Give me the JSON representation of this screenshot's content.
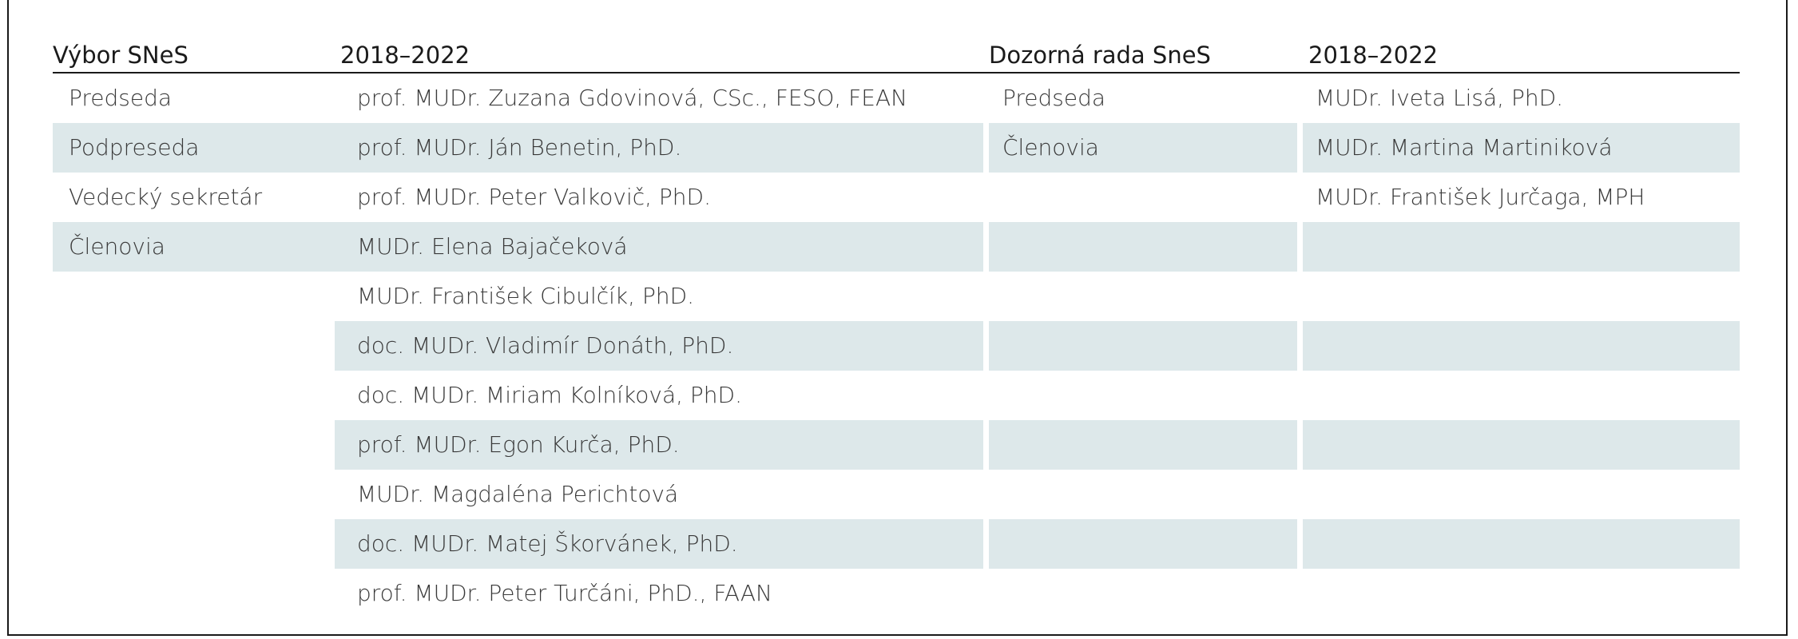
{
  "table": {
    "headers": {
      "committee": "Výbor SNeS",
      "committee_term": "2018–2022",
      "supervisory": "Dozorná rada SneS",
      "supervisory_term": "2018–2022"
    },
    "rows": [
      {
        "role": "Predseda",
        "member": "prof. MUDr. Zuzana Gdovinová, CSc., FESO, FEAN",
        "sup_role": "Predseda",
        "sup_member": "MUDr. Iveta Lisá, PhD."
      },
      {
        "role": "Podpreseda",
        "member": "prof. MUDr. Ján Benetin, PhD.",
        "sup_role": "Členovia",
        "sup_member": "MUDr. Martina Martiniková"
      },
      {
        "role": "Vedecký sekretár",
        "member": "prof. MUDr. Peter Valkovič, PhD.",
        "sup_role": "",
        "sup_member": "MUDr. František Jurčaga, MPH"
      },
      {
        "role": "Členovia",
        "member": "MUDr. Elena Bajačeková",
        "sup_role": "",
        "sup_member": ""
      },
      {
        "role": "",
        "member": "MUDr. František Cibulčík, PhD.",
        "sup_role": "",
        "sup_member": ""
      },
      {
        "role": "",
        "member": "doc. MUDr. Vladimír Donáth, PhD.",
        "sup_role": "",
        "sup_member": ""
      },
      {
        "role": "",
        "member": "doc. MUDr. Miriam Kolníková, PhD.",
        "sup_role": "",
        "sup_member": ""
      },
      {
        "role": "",
        "member": "prof. MUDr. Egon Kurča, PhD.",
        "sup_role": "",
        "sup_member": ""
      },
      {
        "role": "",
        "member": "MUDr. Magdaléna Perichtová",
        "sup_role": "",
        "sup_member": ""
      },
      {
        "role": "",
        "member": "doc. MUDr. Matej Škorvánek, PhD.",
        "sup_role": "",
        "sup_member": ""
      },
      {
        "role": "",
        "member": "prof. MUDr. Peter Turčáni, PhD., FAAN",
        "sup_role": "",
        "sup_member": ""
      }
    ]
  },
  "colors": {
    "stripe": "#dde8ea",
    "rule": "#1a1a1a"
  }
}
